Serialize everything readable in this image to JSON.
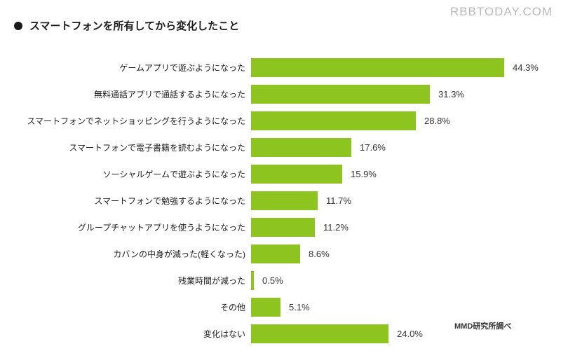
{
  "header": {
    "title": "スマートフォンを所有してから変化したこと",
    "watermark": "RBBTODAY.COM"
  },
  "source_note": "MMD研究所調べ",
  "chart_data": {
    "type": "bar",
    "orientation": "horizontal",
    "title": "スマートフォンを所有してから変化したこと",
    "categories": [
      "ゲームアプリで遊ぶようになった",
      "無料通話アプリで通話するようになった",
      "スマートフォンでネットショッピングを行うようになった",
      "スマートフォンで電子書籍を読むようになった",
      "ソーシャルゲームで遊ぶようになった",
      "スマートフォンで勉強するようになった",
      "グループチャットアプリを使うようになった",
      "カバンの中身が減った(軽くなった)",
      "残業時間が減った",
      "その他",
      "変化はない"
    ],
    "values": [
      44.3,
      31.3,
      28.8,
      17.6,
      15.9,
      11.7,
      11.2,
      8.6,
      0.5,
      5.1,
      24.0
    ],
    "value_suffix": "%",
    "bar_color": "#8dc41f",
    "xlabel": "",
    "ylabel": "",
    "xlim": [
      0,
      50
    ],
    "grid": false,
    "legend": false,
    "data_labels": "outside-end"
  }
}
